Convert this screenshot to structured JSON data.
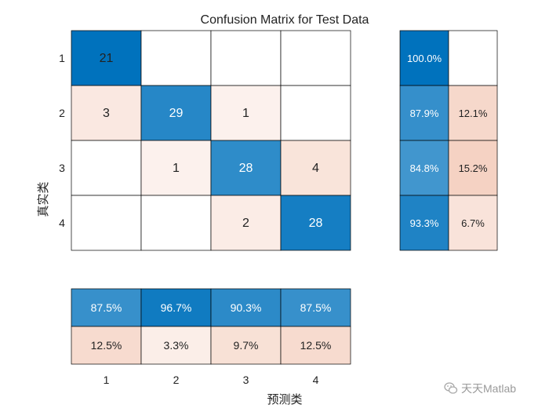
{
  "chart_data": {
    "type": "heatmap",
    "title": "Confusion Matrix for Test Data",
    "xlabel": "预测类",
    "ylabel": "真实类",
    "row_labels": [
      "1",
      "2",
      "3",
      "4"
    ],
    "col_labels": [
      "1",
      "2",
      "3",
      "4"
    ],
    "matrix": [
      [
        21,
        null,
        null,
        null
      ],
      [
        3,
        29,
        1,
        null
      ],
      [
        null,
        1,
        28,
        4
      ],
      [
        null,
        null,
        2,
        28
      ]
    ],
    "row_summary": [
      [
        "100.0%",
        ""
      ],
      [
        "87.9%",
        "12.1%"
      ],
      [
        "84.8%",
        "15.2%"
      ],
      [
        "93.3%",
        "6.7%"
      ]
    ],
    "row_summary_values": [
      [
        100.0,
        0
      ],
      [
        87.9,
        12.1
      ],
      [
        84.8,
        15.2
      ],
      [
        93.3,
        6.7
      ]
    ],
    "column_summary": [
      [
        "87.5%",
        "96.7%",
        "90.3%",
        "87.5%"
      ],
      [
        "12.5%",
        "3.3%",
        "9.7%",
        "12.5%"
      ]
    ],
    "column_summary_values": [
      [
        87.5,
        96.7,
        90.3,
        87.5
      ],
      [
        12.5,
        3.3,
        9.7,
        12.5
      ]
    ],
    "colors": {
      "correct": "#0072BD",
      "incorrect": "#D95319",
      "grid": "#000000",
      "text_dark": "#222222",
      "text_light": "#ffffff"
    }
  },
  "watermark": {
    "text": "天天Matlab",
    "icon": "wechat-logo-icon"
  }
}
